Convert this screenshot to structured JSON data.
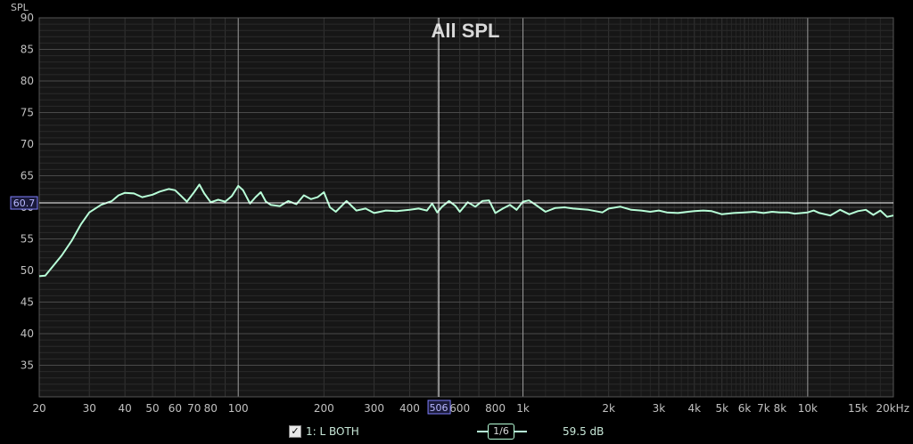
{
  "chart_data": {
    "type": "line",
    "title": "All SPL",
    "ylabel": "SPL",
    "xlabel": "",
    "xscale": "log",
    "xlim": [
      20,
      20000
    ],
    "ylim": [
      30,
      90
    ],
    "yticks": [
      35,
      40,
      45,
      50,
      55,
      60,
      65,
      70,
      75,
      80,
      85,
      90
    ],
    "xticks": [
      {
        "v": 20,
        "label": "20"
      },
      {
        "v": 30,
        "label": "30"
      },
      {
        "v": 40,
        "label": "40"
      },
      {
        "v": 50,
        "label": "50"
      },
      {
        "v": 60,
        "label": "60"
      },
      {
        "v": 70,
        "label": "70"
      },
      {
        "v": 80,
        "label": "80"
      },
      {
        "v": 100,
        "label": "100"
      },
      {
        "v": 200,
        "label": "200"
      },
      {
        "v": 300,
        "label": "300"
      },
      {
        "v": 400,
        "label": "400"
      },
      {
        "v": 600,
        "label": "600"
      },
      {
        "v": 800,
        "label": "800"
      },
      {
        "v": 1000,
        "label": "1k"
      },
      {
        "v": 2000,
        "label": "2k"
      },
      {
        "v": 3000,
        "label": "3k"
      },
      {
        "v": 4000,
        "label": "4k"
      },
      {
        "v": 5000,
        "label": "5k"
      },
      {
        "v": 6000,
        "label": "6k"
      },
      {
        "v": 7000,
        "label": "7k"
      },
      {
        "v": 8000,
        "label": "8k"
      },
      {
        "v": 10000,
        "label": "10k"
      },
      {
        "v": 15000,
        "label": "15k"
      },
      {
        "v": 20000,
        "label": "20kHz"
      }
    ],
    "cursor": {
      "x": 506,
      "y": 60.7,
      "x_label": "506",
      "y_label": "60.7"
    },
    "grid": true,
    "series": [
      {
        "name": "1: L BOTH",
        "color": "#b8ffd8",
        "x": [
          20,
          21,
          22,
          24,
          26,
          28,
          30,
          33,
          36,
          38,
          40,
          43,
          46,
          50,
          53,
          57,
          60,
          63,
          66,
          70,
          73,
          76,
          80,
          85,
          90,
          95,
          100,
          104,
          110,
          115,
          120,
          125,
          130,
          140,
          150,
          160,
          170,
          180,
          190,
          200,
          210,
          220,
          240,
          260,
          280,
          300,
          330,
          360,
          400,
          430,
          460,
          480,
          500,
          520,
          550,
          580,
          600,
          640,
          680,
          720,
          760,
          800,
          850,
          900,
          950,
          1000,
          1050,
          1100,
          1200,
          1300,
          1400,
          1500,
          1700,
          1900,
          2000,
          2200,
          2400,
          2600,
          2800,
          3000,
          3200,
          3500,
          3800,
          4000,
          4300,
          4600,
          5000,
          5500,
          6000,
          6500,
          7000,
          7500,
          8000,
          8500,
          9000,
          10000,
          10500,
          11000,
          12000,
          13000,
          14000,
          15000,
          16000,
          17000,
          18000,
          19000,
          20000
        ],
        "y": [
          49.1,
          49.2,
          50.3,
          52.4,
          54.7,
          57.3,
          59.2,
          60.4,
          61.0,
          61.9,
          62.3,
          62.2,
          61.6,
          62.0,
          62.5,
          62.9,
          62.7,
          61.8,
          60.9,
          62.4,
          63.6,
          62.2,
          60.8,
          61.2,
          60.9,
          61.8,
          63.4,
          62.7,
          60.6,
          61.6,
          62.4,
          60.9,
          60.4,
          60.2,
          61.0,
          60.5,
          61.9,
          61.3,
          61.6,
          62.4,
          60.0,
          59.3,
          61.0,
          59.5,
          59.8,
          59.1,
          59.5,
          59.4,
          59.6,
          59.8,
          59.5,
          60.6,
          59.2,
          60.1,
          61.0,
          60.2,
          59.3,
          60.8,
          60.1,
          61.0,
          61.1,
          59.1,
          59.8,
          60.4,
          59.6,
          60.9,
          61.1,
          60.5,
          59.3,
          59.9,
          60.0,
          59.8,
          59.6,
          59.2,
          59.8,
          60.1,
          59.6,
          59.5,
          59.3,
          59.5,
          59.2,
          59.1,
          59.3,
          59.4,
          59.5,
          59.4,
          58.9,
          59.1,
          59.2,
          59.3,
          59.1,
          59.3,
          59.2,
          59.2,
          59.0,
          59.2,
          59.5,
          59.1,
          58.7,
          59.6,
          58.9,
          59.4,
          59.6,
          58.8,
          59.5,
          58.5,
          58.7
        ]
      }
    ]
  },
  "legend": {
    "check": "✓",
    "series_label": "1: L BOTH",
    "smoothing": "1/6",
    "value": "59.5 dB"
  }
}
